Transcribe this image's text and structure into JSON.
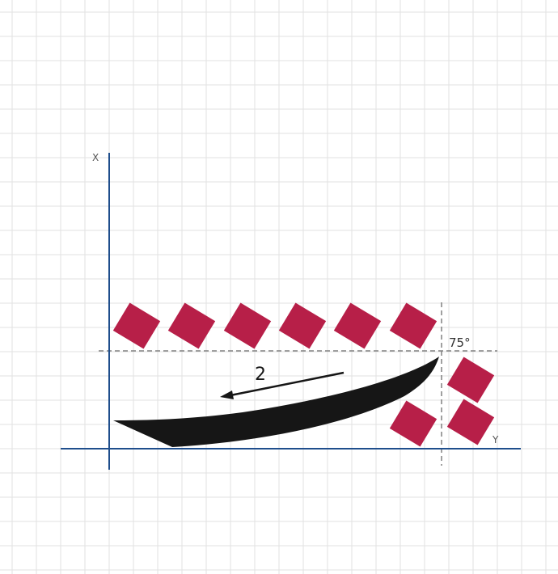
{
  "labels": {
    "x_axis": "X",
    "y_axis": "Y",
    "angle": "75°",
    "arrow_label": "2"
  },
  "colors": {
    "grid": "#e2e2e2",
    "axis": "#1f4e8c",
    "block": "#b71f48",
    "boat": "#161616",
    "guide": "#808080"
  },
  "block_count": 9
}
